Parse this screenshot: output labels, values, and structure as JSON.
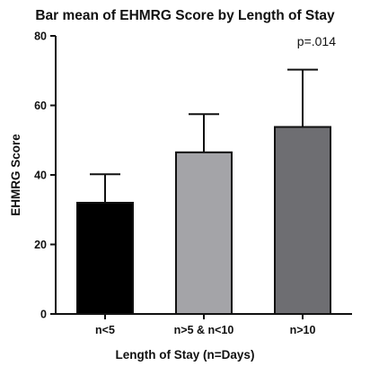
{
  "chart_data": {
    "type": "bar",
    "title": "Bar mean of EHMRG Score by Length of Stay",
    "xlabel": "Length of Stay (n=Days)",
    "ylabel": "EHMRG Score",
    "ylim": [
      0,
      80
    ],
    "yticks": [
      "0",
      "20",
      "40",
      "60",
      "80"
    ],
    "categories": [
      "n<5",
      "n>5 & n<10",
      "n>10"
    ],
    "values": [
      32,
      46.5,
      53.8
    ],
    "error_upper": [
      40.2,
      57.5,
      70.3
    ],
    "colors": [
      "#000000",
      "#a4a4a8",
      "#6e6e72"
    ],
    "annotation": "p=.014",
    "grid": false,
    "legend": "none"
  }
}
